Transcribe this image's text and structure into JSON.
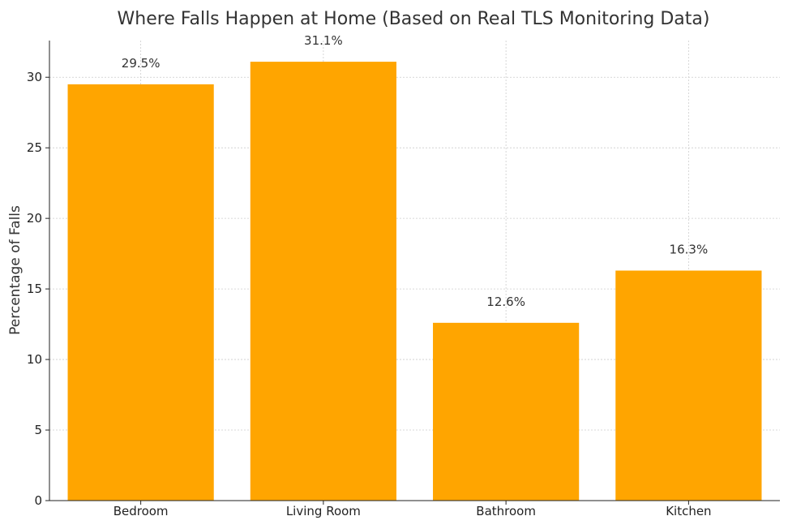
{
  "chart_data": {
    "type": "bar",
    "title": "Where Falls Happen at Home (Based on Real TLS Monitoring Data)",
    "xlabel": "",
    "ylabel": "Percentage of Falls",
    "categories": [
      "Bedroom",
      "Living Room",
      "Bathroom",
      "Kitchen"
    ],
    "values": [
      29.5,
      31.1,
      12.6,
      16.3
    ],
    "data_labels": [
      "29.5%",
      "31.1%",
      "12.6%",
      "16.3%"
    ],
    "ylim": [
      0,
      32.6
    ],
    "yticks": [
      0,
      5,
      10,
      15,
      20,
      25,
      30
    ],
    "grid": true,
    "bar_color": "#FFA500"
  }
}
